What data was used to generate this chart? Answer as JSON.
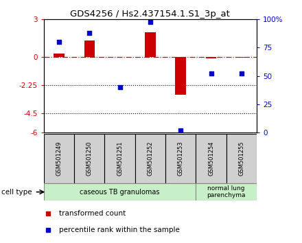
{
  "title": "GDS4256 / Hs2.437154.1.S1_3p_at",
  "samples": [
    "GSM501249",
    "GSM501250",
    "GSM501251",
    "GSM501252",
    "GSM501253",
    "GSM501254",
    "GSM501255"
  ],
  "red_values": [
    0.3,
    1.3,
    0.0,
    2.0,
    -3.0,
    -0.1,
    -0.05
  ],
  "blue_values": [
    80,
    88,
    40,
    98,
    2,
    52,
    52
  ],
  "ylim_left": [
    -6,
    3
  ],
  "ylim_right": [
    0,
    100
  ],
  "left_ticks": [
    3,
    0,
    -2.25,
    -4.5,
    -6
  ],
  "right_ticks": [
    100,
    75,
    50,
    25,
    0
  ],
  "dotted_lines": [
    -2.25,
    -4.5
  ],
  "red_color": "#cc0000",
  "blue_color": "#0000cc",
  "bar_width": 0.35,
  "legend_items": [
    {
      "label": "transformed count",
      "color": "#cc0000"
    },
    {
      "label": "percentile rank within the sample",
      "color": "#0000cc"
    }
  ],
  "cell_type_label": "cell type",
  "right_axis_color": "#0000cc",
  "left_axis_color": "#cc0000",
  "group1_label": "caseous TB granulomas",
  "group2_label": "normal lung\nparenchyma",
  "group_color": "#c8f0c8",
  "sample_box_color": "#d0d0d0"
}
